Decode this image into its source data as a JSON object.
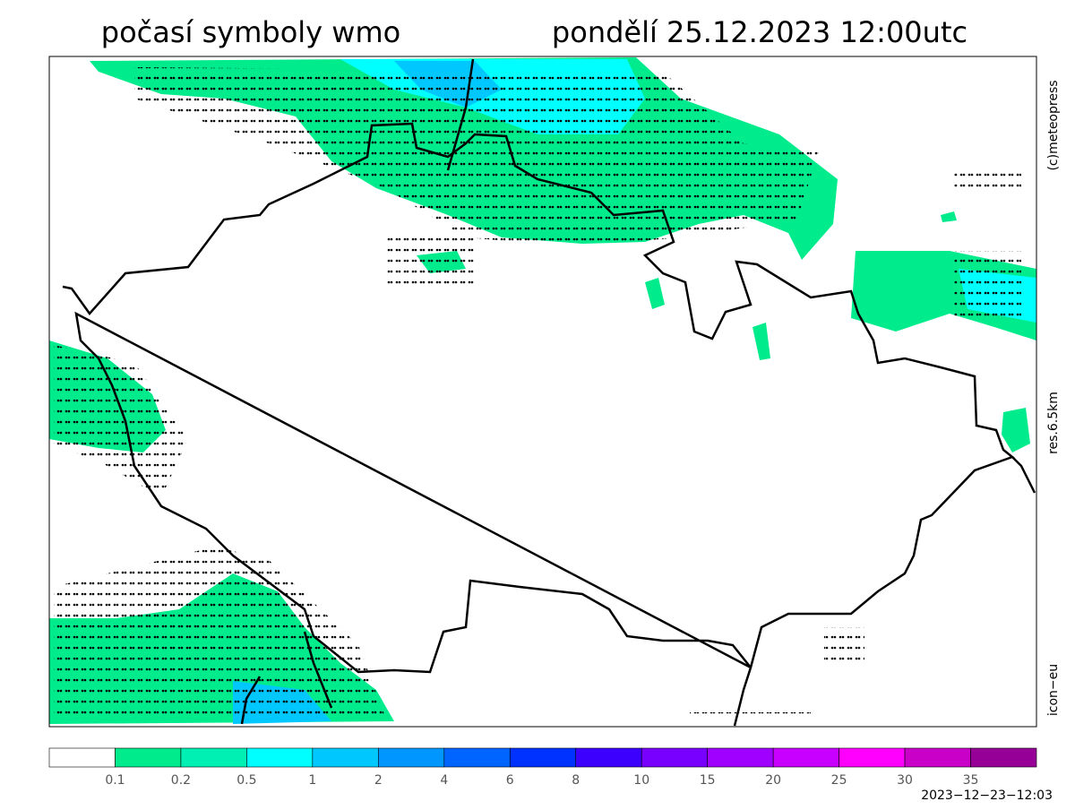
{
  "header": {
    "title_left": "počasí symboly wmo",
    "title_right": "pondělí 25.12.2023 12:00utc"
  },
  "side_labels": {
    "copyright": "(c)meteopress",
    "resolution": "res.6.5km",
    "model": "icon−eu"
  },
  "legend": {
    "colors": [
      "#ffffff",
      "#00eb8c",
      "#00f0b4",
      "#00ffff",
      "#00c8ff",
      "#0096ff",
      "#0064ff",
      "#0032ff",
      "#3c00ff",
      "#7800ff",
      "#a000ff",
      "#c800ff",
      "#ff00ff",
      "#c800c8",
      "#960096"
    ],
    "labels": [
      0.1,
      0.2,
      0.5,
      1,
      2,
      4,
      6,
      8,
      10,
      15,
      20,
      25,
      30,
      35
    ]
  },
  "footer": {
    "timestamp": "2023−12−23−12:03"
  }
}
